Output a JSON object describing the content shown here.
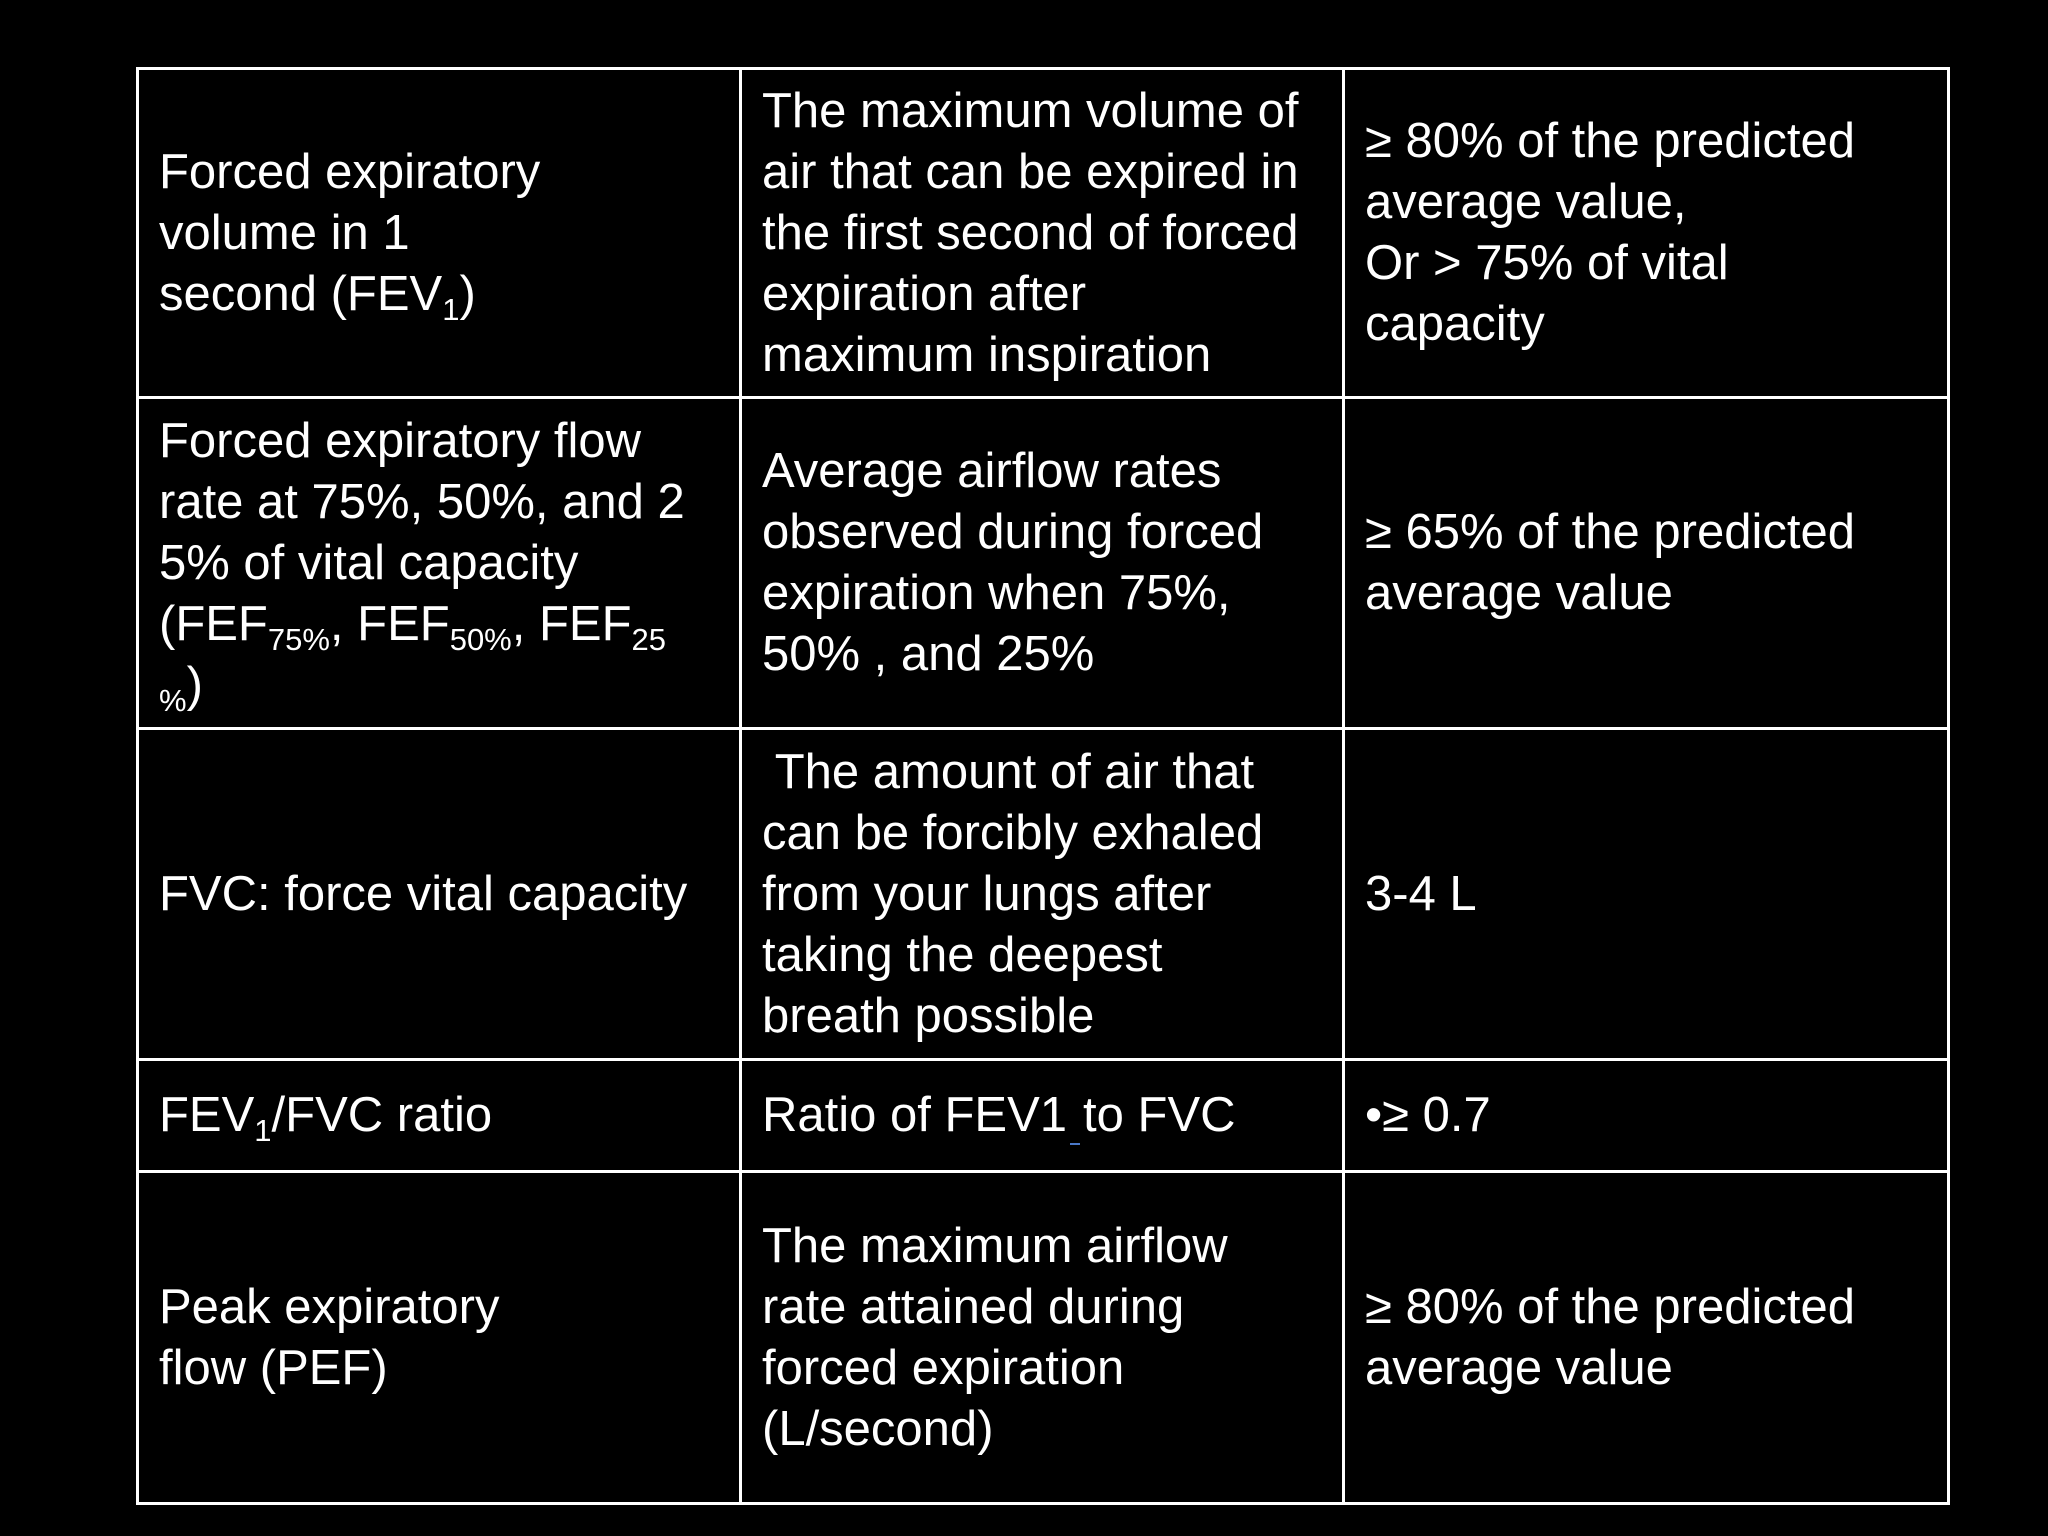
{
  "rows": [
    {
      "parameter": {
        "lines": [
          "Forced expiratory",
          "volume in 1",
          "second (FEV"
        ],
        "sub": "1",
        "tail": ")"
      },
      "definition": [
        "The maximum volume of",
        "air that can be expired in",
        "the first second of forced",
        "expiration after",
        "maximum inspiration"
      ],
      "normal": [
        "≥ 80% of the predicted",
        "average value,",
        "Or > 75% of vital",
        "capacity"
      ]
    },
    {
      "parameter": {
        "lines": [
          "Forced expiratory flow",
          "rate at 75%, 50%, and 2",
          "5% of vital capacity"
        ],
        "fef_prefix": "(FEF",
        "sub75": "75%",
        "mid1": ", FEF",
        "sub50": "50%",
        "mid2": ", FEF",
        "sub25a": "25",
        "sub25b": "%",
        "tail": ")"
      },
      "definition": [
        "Average airflow rates",
        "observed during forced",
        "expiration when 75%,",
        "50% , and 25%"
      ],
      "normal": [
        "≥ 65% of the predicted",
        "average value"
      ]
    },
    {
      "parameter": {
        "lines": [
          "FVC: force vital capacity"
        ]
      },
      "definition": [
        " The amount of air that",
        "can be forcibly exhaled",
        "from your lungs after",
        "taking the deepest",
        "breath possible"
      ],
      "normal": [
        "3-4 L"
      ]
    },
    {
      "parameter": {
        "prefix": "FEV",
        "sub": "1",
        "suffix": "/FVC ratio"
      },
      "definition": {
        "before": "Ratio of FEV1",
        "after": "to FVC"
      },
      "normal": [
        "•≥ 0.7"
      ]
    },
    {
      "parameter": {
        "lines": [
          "Peak expiratory",
          "flow (PEF)"
        ]
      },
      "definition": [
        "The maximum airflow",
        "rate attained during",
        "forced expiration",
        "(L/second)"
      ],
      "normal": [
        "≥ 80% of the predicted",
        "average value"
      ]
    }
  ]
}
